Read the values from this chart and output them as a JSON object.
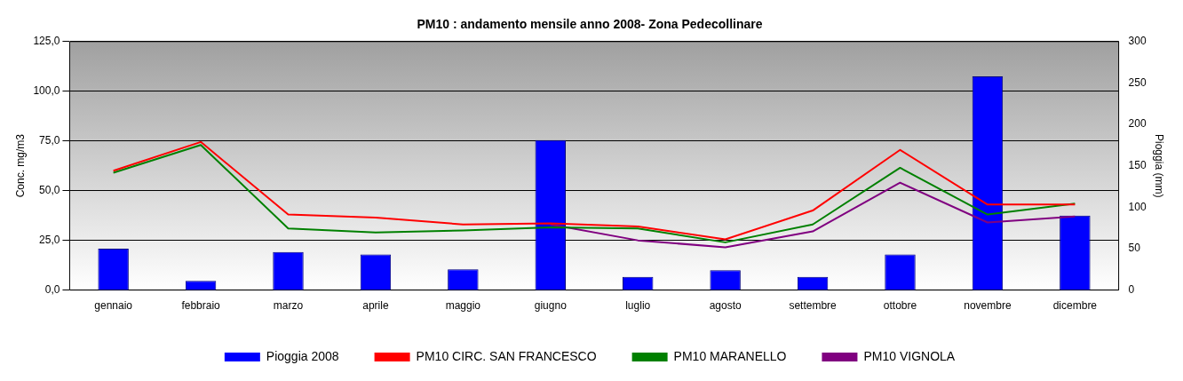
{
  "chart_data": {
    "type": "bar",
    "title": "PM10 : andamento mensile anno 2008- Zona Pedecollinare",
    "ylabel": "Conc. mg/m3",
    "y2label": "Pioggia (mm)",
    "categories": [
      "gennaio",
      "febbraio",
      "marzo",
      "aprile",
      "maggio",
      "giugno",
      "luglio",
      "agosto",
      "settembre",
      "ottobre",
      "novembre",
      "dicembre"
    ],
    "series": [
      {
        "name": "Pioggia 2008",
        "axis": "y2",
        "color": "#0000ff",
        "values": [
          50,
          11,
          46,
          43,
          25,
          181,
          16,
          24,
          16,
          43,
          258,
          90
        ]
      },
      {
        "name": "PM10 CIRC. SAN FRANCESCO",
        "type": "line",
        "color": "#ff0000",
        "values": [
          60,
          74.5,
          38,
          36.5,
          33,
          33.5,
          32,
          25.5,
          40,
          70.5,
          43,
          43
        ]
      },
      {
        "name": "PM10 MARANELLO",
        "type": "line",
        "color": "#008000",
        "values": [
          59,
          73,
          31,
          29,
          30,
          31.5,
          31,
          24,
          33,
          61.5,
          38,
          43.5
        ]
      },
      {
        "name": "PM10 VIGNOLA",
        "type": "line",
        "color": "#800080",
        "values": [
          null,
          null,
          null,
          null,
          null,
          33,
          25,
          21.5,
          29.5,
          54,
          34,
          37
        ]
      }
    ],
    "ylim": [
      0,
      125
    ],
    "yticks": [
      {
        "value": 0,
        "label": "0,0"
      },
      {
        "value": 25,
        "label": "25,0"
      },
      {
        "value": 50,
        "label": "50,0"
      },
      {
        "value": 75,
        "label": "75,0"
      },
      {
        "value": 100,
        "label": "100,0"
      },
      {
        "value": 125,
        "label": "125,0"
      }
    ],
    "y2lim": [
      0,
      300
    ],
    "y2ticks": [
      0,
      50,
      100,
      150,
      200,
      250,
      300
    ],
    "grid": "y",
    "legend": "bottom",
    "marker": "none"
  }
}
